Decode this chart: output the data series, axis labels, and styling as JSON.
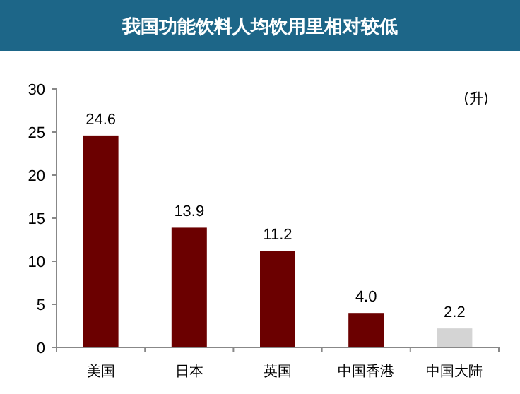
{
  "chart_data": {
    "type": "bar",
    "title": "我国功能饮料人均饮用里相对较低",
    "ylabel": "(升)",
    "categories": [
      "美国",
      "日本",
      "英国",
      "中国香港",
      "中国大陆"
    ],
    "values": [
      24.6,
      13.9,
      11.2,
      4.0,
      2.2
    ],
    "value_labels": [
      "24.6",
      "13.9",
      "11.2",
      "4.0",
      "2.2"
    ],
    "colors": [
      "#6b0000",
      "#6b0000",
      "#6b0000",
      "#6b0000",
      "#d4d4d4"
    ],
    "ylim": [
      0,
      30
    ],
    "yticks": [
      0,
      5,
      10,
      15,
      20,
      25,
      30
    ]
  }
}
